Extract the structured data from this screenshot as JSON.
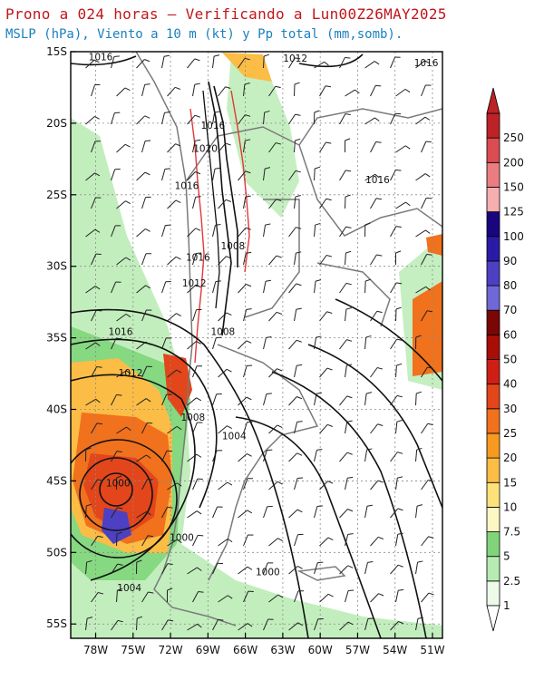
{
  "header": {
    "title": "Prono a 024 horas — Verificando a Lun00Z26MAY2025",
    "subtitle": "MSLP (hPa), Viento a 10 m (kt) y Pp total (mm,somb)."
  },
  "map": {
    "lat_ticks": [
      "15S",
      "20S",
      "25S",
      "30S",
      "35S",
      "40S",
      "45S",
      "50S",
      "55S"
    ],
    "lon_ticks": [
      "78W",
      "75W",
      "72W",
      "69W",
      "66W",
      "63W",
      "60W",
      "57W",
      "54W",
      "51W"
    ],
    "isobar_labels": [
      {
        "text": "1016",
        "lat": -15.6,
        "lon": -77.6
      },
      {
        "text": "1012",
        "lat": -15.7,
        "lon": -62.0
      },
      {
        "text": "1016",
        "lat": -16.0,
        "lon": -51.5
      },
      {
        "text": "1016",
        "lat": -20.4,
        "lon": -68.6
      },
      {
        "text": "1020",
        "lat": -22.0,
        "lon": -69.2
      },
      {
        "text": "1016",
        "lat": -24.6,
        "lon": -70.7
      },
      {
        "text": "1016",
        "lat": -24.2,
        "lon": -55.4
      },
      {
        "text": "1008",
        "lat": -28.8,
        "lon": -67.0
      },
      {
        "text": "1016",
        "lat": -29.6,
        "lon": -69.8
      },
      {
        "text": "1012",
        "lat": -31.4,
        "lon": -70.1
      },
      {
        "text": "1016",
        "lat": -34.8,
        "lon": -76.0
      },
      {
        "text": "1008",
        "lat": -34.8,
        "lon": -67.8
      },
      {
        "text": "1012",
        "lat": -37.7,
        "lon": -75.2
      },
      {
        "text": "1008",
        "lat": -40.8,
        "lon": -70.2
      },
      {
        "text": "1004",
        "lat": -42.1,
        "lon": -66.9
      },
      {
        "text": "1000",
        "lat": -45.4,
        "lon": -76.2
      },
      {
        "text": "1000",
        "lat": -49.2,
        "lon": -71.1
      },
      {
        "text": "1000",
        "lat": -51.6,
        "lon": -64.2
      },
      {
        "text": "1004",
        "lat": -52.7,
        "lon": -75.3
      }
    ]
  },
  "colorbar": {
    "labels": [
      "1",
      "2.5",
      "5",
      "7.5",
      "10",
      "15",
      "20",
      "25",
      "30",
      "40",
      "50",
      "60",
      "70",
      "80",
      "90",
      "100",
      "125",
      "150",
      "200",
      "250"
    ],
    "colors": [
      "#edfaea",
      "#b7ebb2",
      "#80d57a",
      "#fdf7c3",
      "#fde27a",
      "#fbbd45",
      "#f79a1f",
      "#f1711d",
      "#e2461a",
      "#cf1f14",
      "#a80d08",
      "#7a0605",
      "#6f68d6",
      "#4d40c2",
      "#2a1ba7",
      "#19067e",
      "#f7aeb1",
      "#eb7d82",
      "#db4c52",
      "#bd2227"
    ]
  }
}
